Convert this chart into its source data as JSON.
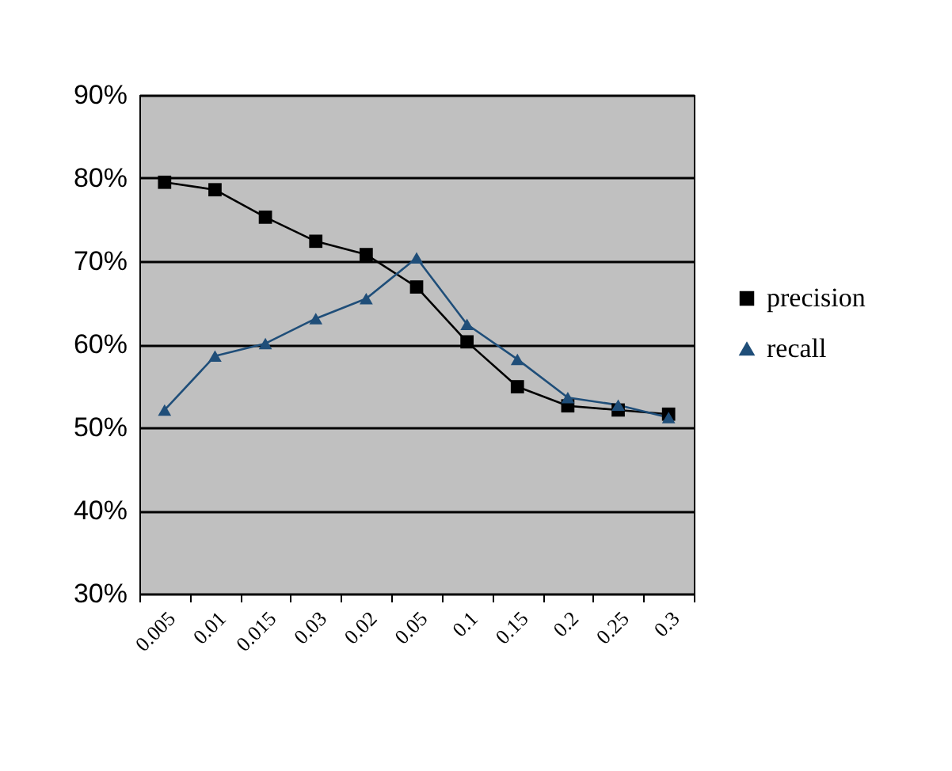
{
  "chart_data": {
    "type": "line",
    "categories": [
      "0.005",
      "0.01",
      "0.015",
      "0.03",
      "0.02",
      "0.05",
      "0.1",
      "0.15",
      "0.2",
      "0.25",
      "0.3"
    ],
    "series": [
      {
        "name": "precision",
        "color": "#000000",
        "marker": "square",
        "values": [
          79.5,
          78.6,
          75.3,
          72.4,
          70.8,
          66.9,
          60.3,
          54.9,
          52.6,
          52.1,
          51.6
        ]
      },
      {
        "name": "recall",
        "color": "#1f4e79",
        "marker": "triangle",
        "values": [
          52.1,
          58.6,
          60.1,
          63.1,
          65.5,
          70.4,
          62.4,
          58.2,
          53.6,
          52.7,
          51.2
        ]
      }
    ],
    "ylim": [
      30,
      90
    ],
    "yticks": [
      {
        "value": 30,
        "label": "30%"
      },
      {
        "value": 40,
        "label": "40%"
      },
      {
        "value": 50,
        "label": "50%"
      },
      {
        "value": 60,
        "label": "60%"
      },
      {
        "value": 70,
        "label": "70%"
      },
      {
        "value": 80,
        "label": "80%"
      },
      {
        "value": 90,
        "label": "90%"
      }
    ],
    "grid": "y",
    "legend": "right"
  }
}
